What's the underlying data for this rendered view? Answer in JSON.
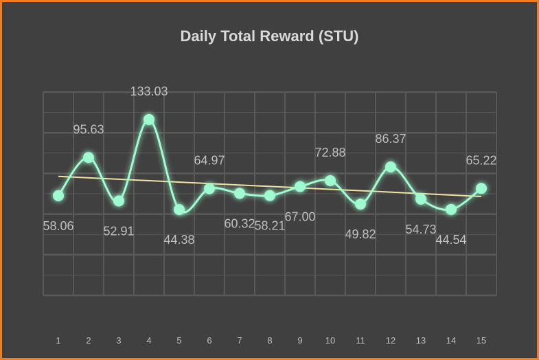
{
  "chart_data": {
    "type": "line",
    "title": "Daily Total Reward (STU)",
    "xlabel": "",
    "ylabel": "",
    "categories": [
      "1",
      "2",
      "3",
      "4",
      "5",
      "6",
      "7",
      "8",
      "9",
      "10",
      "11",
      "12",
      "13",
      "14",
      "15"
    ],
    "series": [
      {
        "values": [
          58.06,
          95.63,
          52.91,
          133.03,
          44.38,
          64.97,
          60.32,
          58.21,
          67.0,
          72.88,
          49.82,
          86.37,
          54.73,
          44.54,
          65.22
        ],
        "labels": [
          "58.06",
          "95.63",
          "52.91",
          "133.03",
          "44.38",
          "64.97",
          "60.32",
          "58.21",
          "67.00",
          "72.88",
          "49.82",
          "86.37",
          "54.73",
          "44.54",
          "65.22"
        ],
        "smooth": true,
        "color": "#9ffcd0"
      }
    ],
    "trendline": {
      "type": "linear",
      "color": "#f4e2a0"
    },
    "ylim": [
      -40,
      160
    ],
    "grid": true,
    "legend": "none"
  },
  "colors": {
    "background": "#404040",
    "border": "#ef7d22",
    "grid": "#595959"
  }
}
